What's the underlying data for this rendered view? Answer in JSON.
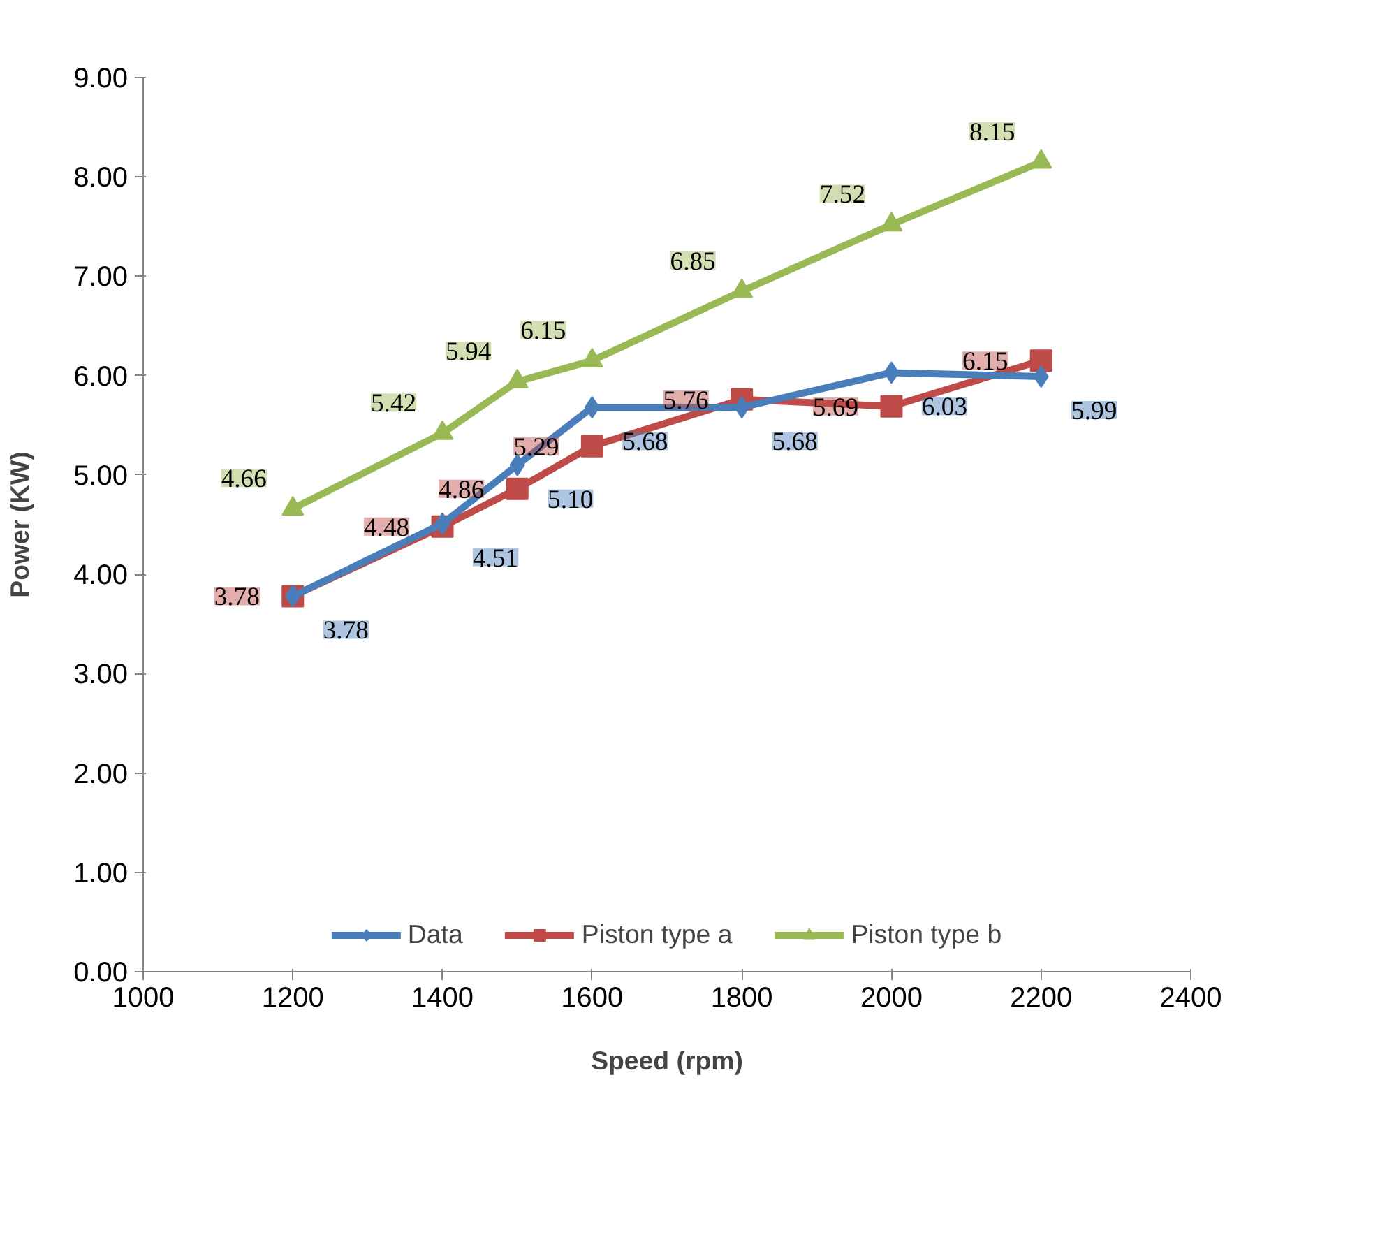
{
  "chart_data": {
    "type": "line",
    "xlabel": "Speed (rpm)",
    "ylabel": "Power (KW)",
    "x": [
      1200,
      1400,
      1500,
      1600,
      1800,
      2000,
      2200
    ],
    "xlim": [
      1000,
      2400
    ],
    "xticks": [
      1000,
      1200,
      1400,
      1600,
      1800,
      2000,
      2200,
      2400
    ],
    "ylim": [
      0,
      9
    ],
    "yticks": [
      {
        "value": 0,
        "label": "0.00"
      },
      {
        "value": 1,
        "label": "1.00"
      },
      {
        "value": 2,
        "label": "2.00"
      },
      {
        "value": 3,
        "label": "3.00"
      },
      {
        "value": 4,
        "label": "4.00"
      },
      {
        "value": 5,
        "label": "5.00"
      },
      {
        "value": 6,
        "label": "6.00"
      },
      {
        "value": 7,
        "label": "7.00"
      },
      {
        "value": 8,
        "label": "8.00"
      },
      {
        "value": 9,
        "label": "9.00"
      }
    ],
    "grid": false,
    "legend": "bottom",
    "line_style": "solid",
    "series": [
      {
        "name": "Data",
        "color": "#4a7ebb",
        "marker": "diamond",
        "values": [
          3.78,
          4.51,
          5.1,
          5.68,
          5.68,
          6.03,
          5.99
        ],
        "value_labels": [
          "3.78",
          "4.51",
          "5.10",
          "5.68",
          "5.68",
          "6.03",
          "5.99"
        ]
      },
      {
        "name": "Piston type a",
        "color": "#be4b48",
        "marker": "square",
        "values": [
          3.78,
          4.48,
          4.86,
          5.29,
          5.76,
          5.69,
          6.15
        ],
        "value_labels": [
          "3.78",
          "4.48",
          "4.86",
          "5.29",
          "5.76",
          "5.69",
          "6.15"
        ]
      },
      {
        "name": "Piston type b",
        "color": "#98b954",
        "marker": "triangle",
        "values": [
          4.66,
          5.42,
          5.94,
          6.15,
          6.85,
          7.52,
          8.15
        ],
        "value_labels": [
          "4.66",
          "5.42",
          "5.94",
          "6.15",
          "6.85",
          "7.52",
          "8.15"
        ]
      }
    ]
  }
}
